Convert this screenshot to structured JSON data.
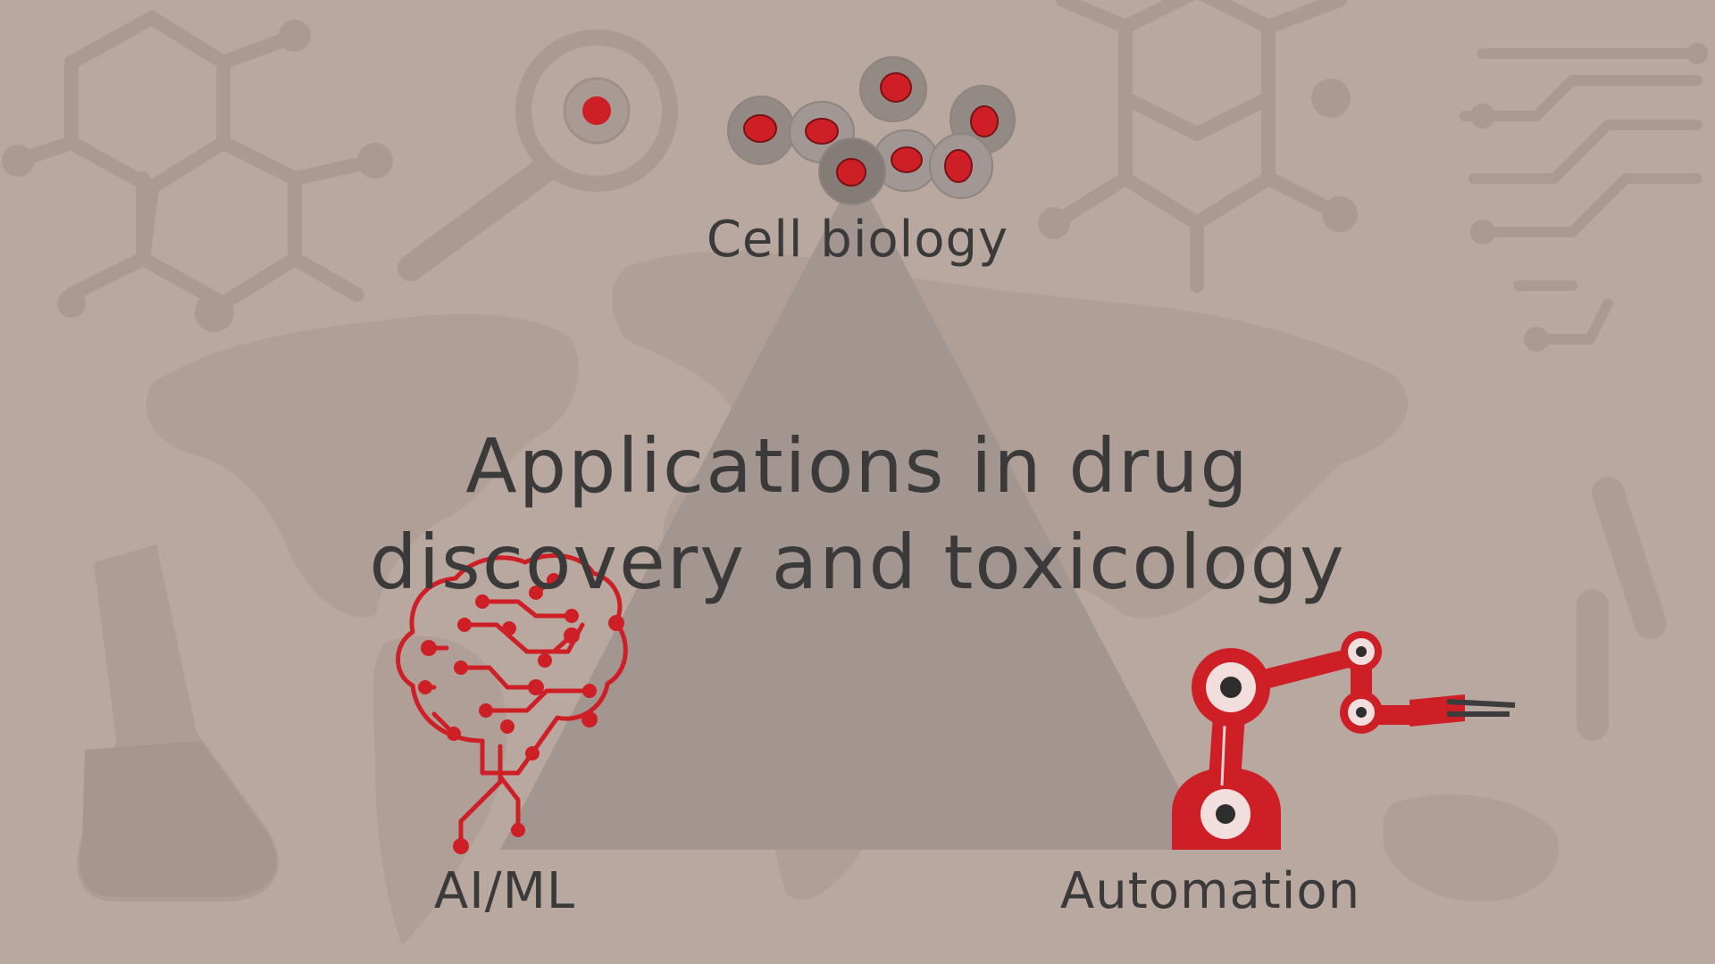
{
  "diagram": {
    "title_line1": "Applications in drug",
    "title_line2": "discovery and toxicology",
    "nodes": [
      {
        "label": "Cell biology",
        "icon": "cells-icon",
        "position": "top"
      },
      {
        "label": "AI/ML",
        "icon": "circuit-brain-icon",
        "position": "bottom-left"
      },
      {
        "label": "Automation",
        "icon": "robotic-arm-icon",
        "position": "bottom-right"
      }
    ]
  },
  "colors": {
    "background": "#b9a89f",
    "triangle": "#a39590",
    "accent_red": "#cf1f26",
    "text": "#3a3a3a",
    "watermark": "#ab9a91"
  },
  "background_icons": [
    "molecule-icon",
    "magnifier-icon",
    "world-map-icon",
    "flask-icon",
    "circuit-icon",
    "test-tube-icon"
  ]
}
